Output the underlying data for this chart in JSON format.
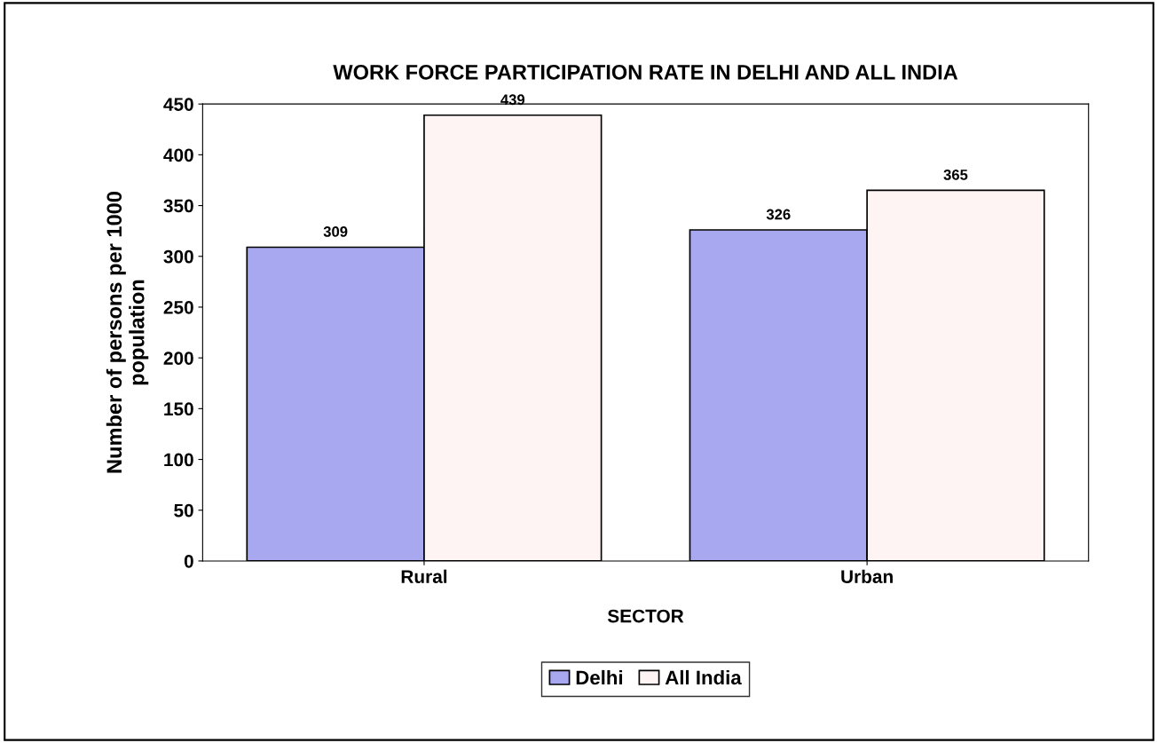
{
  "chart_data": {
    "type": "bar",
    "title": "WORK FORCE PARTICIPATION RATE IN DELHI AND ALL INDIA",
    "xlabel": "SECTOR",
    "ylabel": "Number of persons per 1000\npopulation",
    "categories": [
      "Rural",
      "Urban"
    ],
    "series": [
      {
        "name": "Delhi",
        "color": "#a8a8f0",
        "values": [
          309,
          326
        ]
      },
      {
        "name": "All India",
        "color": "#fff4f4",
        "values": [
          439,
          365
        ]
      }
    ],
    "ylim": [
      0,
      450
    ],
    "yticks": [
      0,
      50,
      100,
      150,
      200,
      250,
      300,
      350,
      400,
      450
    ],
    "data_labels": true,
    "grid": false,
    "legend": "bottom"
  }
}
